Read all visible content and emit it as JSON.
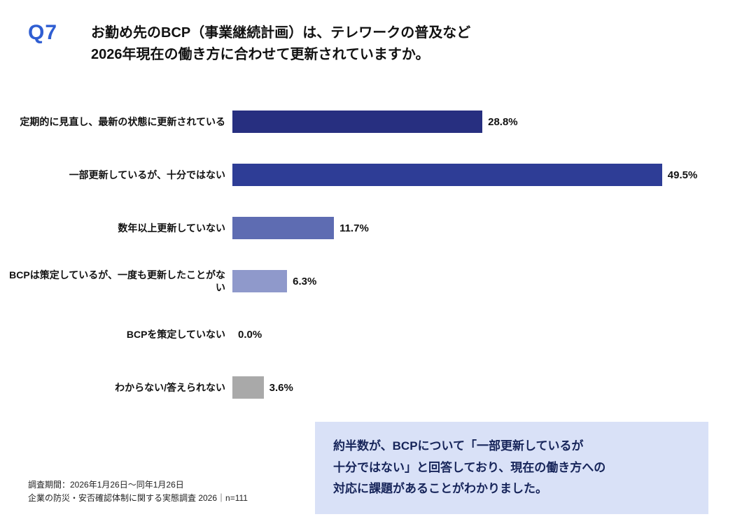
{
  "question": {
    "number": "Q7",
    "title_line1": "お勤め先のBCP（事業継続計画）は、テレワークの普及など",
    "title_line2": "2026年現在の働き方に合わせて更新されていますか。"
  },
  "chart_data": {
    "type": "bar",
    "orientation": "horizontal",
    "categories": [
      "定期的に見直し、最新の状態に更新されている",
      "一部更新しているが、十分ではない",
      "数年以上更新していない",
      "BCPは策定しているが、一度も更新したことがない",
      "BCPを策定していない",
      "わからない/答えられない"
    ],
    "values": [
      28.8,
      49.5,
      11.7,
      6.3,
      0.0,
      3.6
    ],
    "value_labels": [
      "28.8%",
      "49.5%",
      "11.7%",
      "6.3%",
      "0.0%",
      "3.6%"
    ],
    "colors": [
      "#272f80",
      "#2e3d96",
      "#5e6cb2",
      "#8f99cb",
      null,
      "#a9a9a9"
    ],
    "title": "お勤め先のBCP（事業継続計画）は、テレワークの普及など2026年現在の働き方に合わせて更新されていますか。",
    "xlabel": "",
    "ylabel": "",
    "xlim": [
      0,
      52
    ],
    "grid": false,
    "legend": false
  },
  "note": {
    "lines": [
      "約半数が、BCPについて「一部更新しているが",
      "十分ではない」と回答しており、現在の働き方への",
      "対応に課題があることがわかりました。"
    ]
  },
  "footer": {
    "line1": "調査期間：2026年1月26日～同年1月26日",
    "line2": "企業の防災・安否確認体制に関する実態調査 2026｜n=111"
  }
}
